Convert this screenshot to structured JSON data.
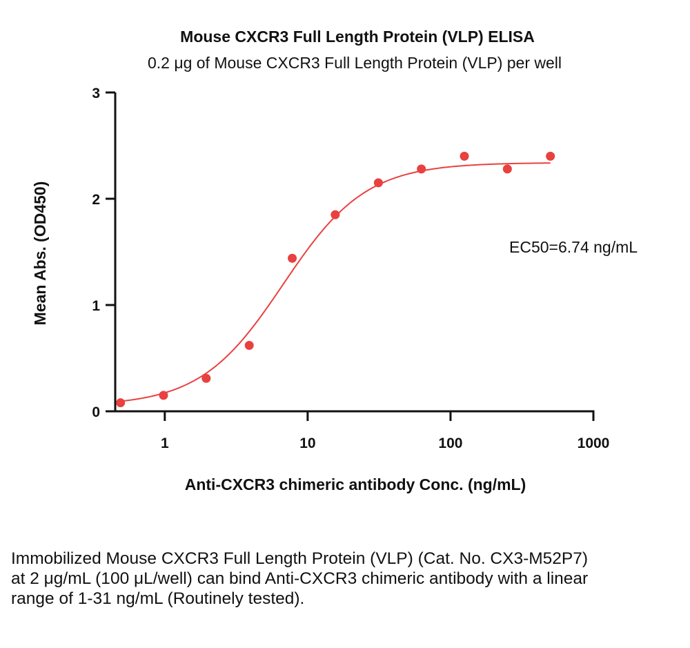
{
  "chart_data": {
    "type": "scatter",
    "title": "Mouse CXCR3 Full Length Protein (VLP) ELISA",
    "subtitle": "0.2 μg of Mouse CXCR3 Full Length Protein (VLP) per well",
    "xlabel": "Anti-CXCR3 chimeric antibody Conc. (ng/mL)",
    "ylabel": "Mean Abs. (OD450)",
    "x_scale": "log",
    "xlim": [
      0.45,
      1000
    ],
    "ylim": [
      0,
      3
    ],
    "x_ticks": [
      1,
      10,
      100,
      1000
    ],
    "x_tick_labels": [
      "1",
      "10",
      "100",
      "1000"
    ],
    "y_ticks": [
      0,
      1,
      2,
      3
    ],
    "y_tick_labels": [
      "0",
      "1",
      "2",
      "3"
    ],
    "grid": false,
    "points": {
      "x": [
        0.49,
        0.98,
        1.95,
        3.9,
        7.8,
        15.6,
        31.25,
        62.5,
        125,
        250,
        500
      ],
      "y": [
        0.08,
        0.15,
        0.31,
        0.62,
        1.44,
        1.85,
        2.15,
        2.28,
        2.4,
        2.28,
        2.4
      ]
    },
    "fit_curve": {
      "model": "4PL",
      "bottom": 0.05,
      "top": 2.34,
      "ec50": 6.74,
      "hill": 1.5,
      "color": "#e8413f"
    },
    "point_color": "#e8413f",
    "annotation": "EC50=6.74 ng/mL"
  },
  "caption": "Immobilized Mouse CXCR3 Full Length Protein (VLP) (Cat. No. CX3-M52P7) at 2 μg/mL (100 μL/well) can bind Anti-CXCR3 chimeric antibody with a linear range of 1-31 ng/mL (Routinely tested)."
}
